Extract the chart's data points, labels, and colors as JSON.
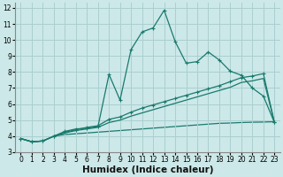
{
  "xlabel": "Humidex (Indice chaleur)",
  "bg_color": "#cce8e8",
  "grid_color": "#aacfcf",
  "line_color": "#1a7a6e",
  "xlim": [
    -0.5,
    23.5
  ],
  "ylim": [
    3,
    12.3
  ],
  "xticks": [
    0,
    1,
    2,
    3,
    4,
    5,
    6,
    7,
    8,
    9,
    10,
    11,
    12,
    13,
    14,
    15,
    16,
    17,
    18,
    19,
    20,
    21,
    22,
    23
  ],
  "yticks": [
    3,
    4,
    5,
    6,
    7,
    8,
    9,
    10,
    11,
    12
  ],
  "line1_x": [
    0,
    1,
    2,
    3,
    4,
    5,
    6,
    7,
    8,
    9,
    10,
    11,
    12,
    13,
    14,
    15,
    16,
    17,
    18,
    19,
    20,
    21,
    22,
    23
  ],
  "line1_y": [
    3.85,
    3.65,
    3.7,
    4.0,
    4.3,
    4.45,
    4.5,
    4.6,
    7.85,
    6.25,
    9.4,
    10.5,
    10.75,
    11.85,
    9.9,
    8.55,
    8.65,
    9.25,
    8.75,
    8.05,
    7.8,
    7.0,
    6.5,
    4.85
  ],
  "line2_x": [
    0,
    1,
    2,
    3,
    4,
    5,
    6,
    7,
    8,
    9,
    10,
    11,
    12,
    13,
    14,
    15,
    16,
    17,
    18,
    19,
    20,
    21,
    22,
    23
  ],
  "line2_y": [
    3.85,
    3.65,
    3.7,
    4.0,
    4.25,
    4.4,
    4.55,
    4.65,
    5.05,
    5.2,
    5.5,
    5.75,
    5.95,
    6.15,
    6.35,
    6.55,
    6.75,
    6.95,
    7.15,
    7.4,
    7.65,
    7.75,
    7.9,
    4.85
  ],
  "line3_x": [
    0,
    1,
    2,
    3,
    4,
    5,
    6,
    7,
    8,
    9,
    10,
    11,
    12,
    13,
    14,
    15,
    16,
    17,
    18,
    19,
    20,
    21,
    22,
    23
  ],
  "line3_y": [
    3.85,
    3.65,
    3.7,
    4.0,
    4.2,
    4.35,
    4.45,
    4.55,
    4.85,
    5.0,
    5.25,
    5.45,
    5.65,
    5.85,
    6.05,
    6.25,
    6.45,
    6.65,
    6.85,
    7.05,
    7.35,
    7.45,
    7.6,
    4.85
  ],
  "line4_x": [
    0,
    1,
    2,
    3,
    4,
    5,
    6,
    7,
    8,
    9,
    10,
    11,
    12,
    13,
    14,
    15,
    16,
    17,
    18,
    19,
    20,
    21,
    22,
    23
  ],
  "line4_y": [
    3.85,
    3.65,
    3.7,
    4.0,
    4.1,
    4.15,
    4.2,
    4.25,
    4.3,
    4.35,
    4.4,
    4.45,
    4.5,
    4.55,
    4.6,
    4.65,
    4.7,
    4.75,
    4.8,
    4.82,
    4.85,
    4.87,
    4.88,
    4.9
  ],
  "marker_style": "+",
  "marker_size": 3,
  "line_width": 0.9,
  "tick_fontsize": 5.5,
  "xlabel_fontsize": 7.5
}
